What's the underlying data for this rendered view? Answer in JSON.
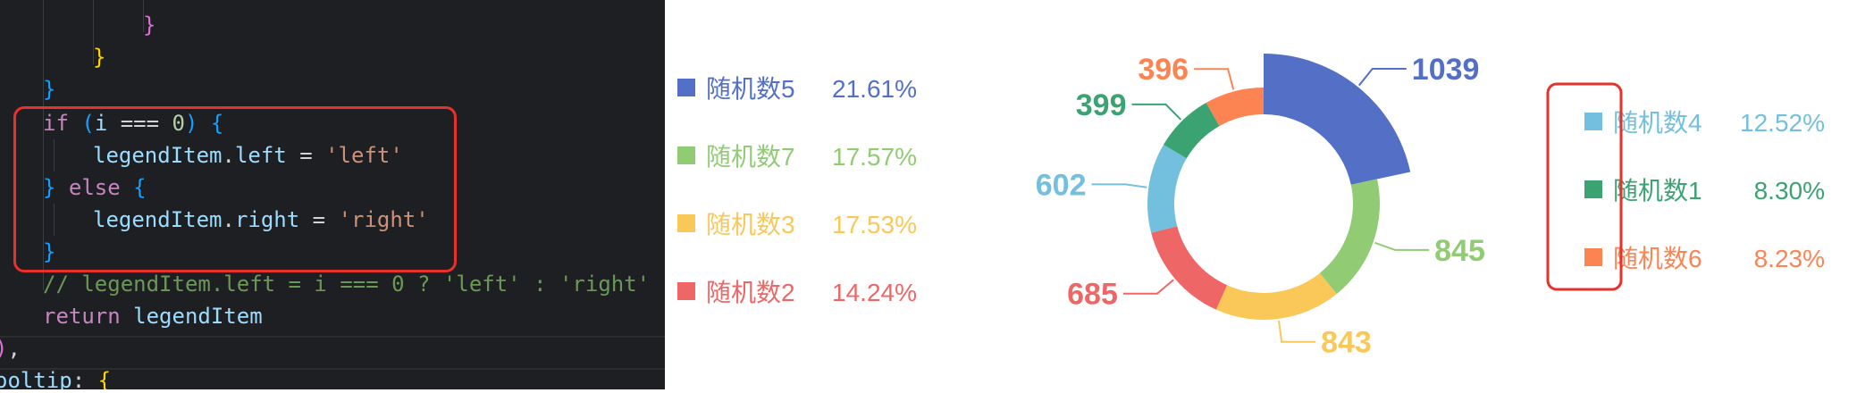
{
  "code": {
    "lines": [
      {
        "tokens": [
          {
            "t": "}",
            "c": "br-pink"
          }
        ]
      },
      {
        "tokens": [
          {
            "t": "}",
            "c": "br-yellow"
          }
        ]
      },
      {
        "tokens": [
          {
            "t": "}",
            "c": "br-blue"
          }
        ]
      },
      {
        "tokens": [
          {
            "t": "if",
            "c": "kw-pink"
          },
          {
            "t": " ",
            "c": "op"
          },
          {
            "t": "(",
            "c": "br-blue"
          },
          {
            "t": "i",
            "c": "var"
          },
          {
            "t": " === ",
            "c": "op"
          },
          {
            "t": "0",
            "c": "num"
          },
          {
            "t": ")",
            "c": "br-blue"
          },
          {
            "t": " ",
            "c": "op"
          },
          {
            "t": "{",
            "c": "br-blue"
          }
        ]
      },
      {
        "tokens": [
          {
            "t": "legendItem",
            "c": "var"
          },
          {
            "t": ".",
            "c": "op"
          },
          {
            "t": "left",
            "c": "prop"
          },
          {
            "t": " = ",
            "c": "op"
          },
          {
            "t": "'left'",
            "c": "str"
          }
        ]
      },
      {
        "tokens": [
          {
            "t": "}",
            "c": "br-blue"
          },
          {
            "t": " ",
            "c": "op"
          },
          {
            "t": "else",
            "c": "kw-pink"
          },
          {
            "t": " ",
            "c": "op"
          },
          {
            "t": "{",
            "c": "br-blue"
          }
        ]
      },
      {
        "tokens": [
          {
            "t": "legendItem",
            "c": "var"
          },
          {
            "t": ".",
            "c": "op"
          },
          {
            "t": "right",
            "c": "prop"
          },
          {
            "t": " = ",
            "c": "op"
          },
          {
            "t": "'right'",
            "c": "str"
          }
        ]
      },
      {
        "tokens": [
          {
            "t": "}",
            "c": "br-blue"
          }
        ]
      },
      {
        "tokens": [
          {
            "t": "// legendItem.left = i === 0 ? 'left' : 'right'",
            "c": "cmt"
          }
        ]
      },
      {
        "tokens": [
          {
            "t": "return",
            "c": "kw-pink"
          },
          {
            "t": " ",
            "c": "op"
          },
          {
            "t": "legendItem",
            "c": "var"
          }
        ]
      },
      {
        "tokens": [
          {
            "t": ")",
            "c": "br-pink"
          },
          {
            "t": ",",
            "c": "op"
          }
        ]
      },
      {
        "tokens": [
          {
            "t": "ooltip",
            "c": "var"
          },
          {
            "t": ": ",
            "c": "op"
          },
          {
            "t": "{",
            "c": "br-yellow"
          }
        ]
      }
    ]
  },
  "colors": {
    "blue": "#5470c6",
    "green": "#91cc75",
    "yellow": "#fac858",
    "red": "#ee6666",
    "cyan": "#73c0de",
    "teal": "#3ba272",
    "orange": "#fc8452",
    "highlight": "#e8312a"
  },
  "chart_data": {
    "type": "pie",
    "variant": "donut",
    "slices": [
      {
        "name": "随机数5",
        "value": 1039,
        "percent": "21.61%",
        "color": "#5470c6"
      },
      {
        "name": "随机数7",
        "value": 845,
        "percent": "17.57%",
        "color": "#91cc75"
      },
      {
        "name": "随机数3",
        "value": 843,
        "percent": "17.53%",
        "color": "#fac858"
      },
      {
        "name": "随机数2",
        "value": 685,
        "percent": "14.24%",
        "color": "#ee6666"
      },
      {
        "name": "随机数4",
        "value": 602,
        "percent": "12.52%",
        "color": "#73c0de"
      },
      {
        "name": "随机数1",
        "value": 399,
        "percent": "8.30%",
        "color": "#3ba272"
      },
      {
        "name": "随机数6",
        "value": 396,
        "percent": "8.23%",
        "color": "#fc8452"
      }
    ],
    "legend_left": [
      "随机数5",
      "随机数7",
      "随机数3",
      "随机数2"
    ],
    "legend_right": [
      "随机数4",
      "随机数1",
      "随机数6"
    ],
    "highlighted_legend": "right",
    "roseType": "first slice enlarged"
  }
}
